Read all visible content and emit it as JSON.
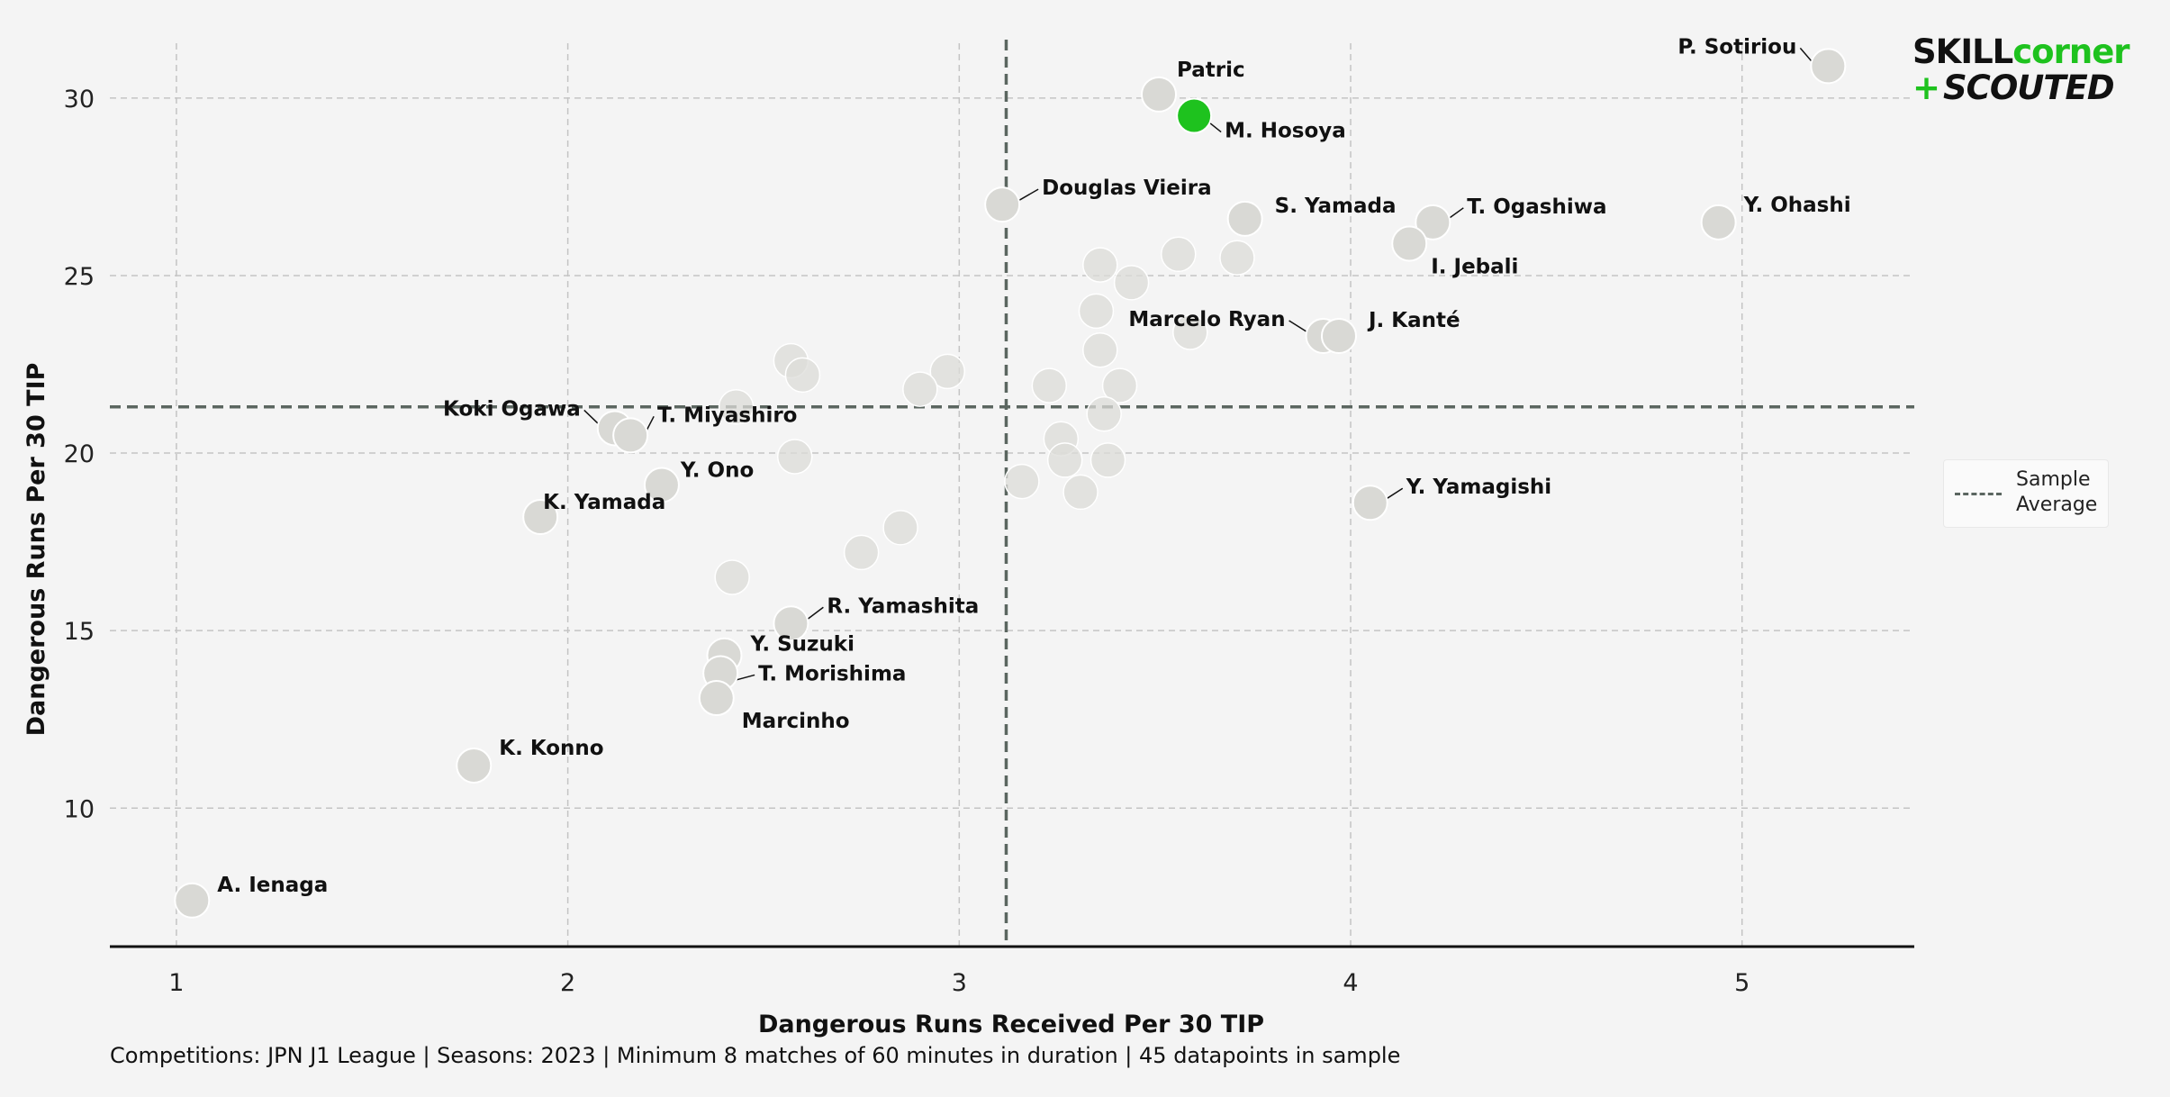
{
  "chart_data": {
    "type": "scatter",
    "xlabel": "Dangerous Runs Received Per 30 TIP",
    "ylabel": "Dangerous Runs Per 30 TIP",
    "xlim": [
      0.83,
      5.44
    ],
    "ylim": [
      6.1,
      32.0
    ],
    "x_ticks": [
      "1",
      "2",
      "3",
      "4",
      "5"
    ],
    "y_ticks": [
      "10",
      "15",
      "20",
      "25",
      "30"
    ],
    "grid": true,
    "average": {
      "x": 3.12,
      "y": 21.3
    },
    "legend": {
      "label": "Sample\nAverage",
      "placement": "right"
    },
    "highlight_color": "#1ec21e",
    "point_color": "#d9d9d5",
    "labeled_points": [
      {
        "label": "P. Sotiriou",
        "x": 5.22,
        "y": 30.9
      },
      {
        "label": "Patric",
        "x": 3.51,
        "y": 30.1
      },
      {
        "label": "M. Hosoya",
        "x": 3.6,
        "y": 29.5,
        "highlight": true
      },
      {
        "label": "Douglas Vieira",
        "x": 3.11,
        "y": 27.0
      },
      {
        "label": "S. Yamada",
        "x": 3.73,
        "y": 26.6
      },
      {
        "label": "T. Ogashiwa",
        "x": 4.21,
        "y": 26.5
      },
      {
        "label": "Y. Ohashi",
        "x": 4.94,
        "y": 26.5
      },
      {
        "label": "I. Jebali",
        "x": 4.15,
        "y": 25.9
      },
      {
        "label": "Marcelo Ryan",
        "x": 3.93,
        "y": 23.3
      },
      {
        "label": "J. Kanté",
        "x": 3.97,
        "y": 23.3
      },
      {
        "label": "Koki Ogawa",
        "x": 2.12,
        "y": 20.7
      },
      {
        "label": "T. Miyashiro",
        "x": 2.16,
        "y": 20.5
      },
      {
        "label": "Y. Ono",
        "x": 2.24,
        "y": 19.1
      },
      {
        "label": "Y. Yamagishi",
        "x": 4.05,
        "y": 18.6
      },
      {
        "label": "K. Yamada",
        "x": 1.93,
        "y": 18.2
      },
      {
        "label": "R. Yamashita",
        "x": 2.57,
        "y": 15.2
      },
      {
        "label": "Y. Suzuki",
        "x": 2.4,
        "y": 14.3
      },
      {
        "label": "T. Morishima",
        "x": 2.39,
        "y": 13.8
      },
      {
        "label": "Marcinho",
        "x": 2.38,
        "y": 13.1
      },
      {
        "label": "K. Konno",
        "x": 1.76,
        "y": 11.2
      },
      {
        "label": "A. Ienaga",
        "x": 1.04,
        "y": 7.4
      }
    ],
    "other_points": [
      [
        2.57,
        22.6
      ],
      [
        2.6,
        22.2
      ],
      [
        2.97,
        22.3
      ],
      [
        2.9,
        21.8
      ],
      [
        2.58,
        19.9
      ],
      [
        2.85,
        17.9
      ],
      [
        2.75,
        17.2
      ],
      [
        2.42,
        16.5
      ],
      [
        3.56,
        25.6
      ],
      [
        3.71,
        25.5
      ],
      [
        3.36,
        25.3
      ],
      [
        3.44,
        24.8
      ],
      [
        3.35,
        24.0
      ],
      [
        3.59,
        23.4
      ],
      [
        3.36,
        22.9
      ],
      [
        3.23,
        21.9
      ],
      [
        3.41,
        21.9
      ],
      [
        3.37,
        21.1
      ],
      [
        3.26,
        20.4
      ],
      [
        3.27,
        19.8
      ],
      [
        3.38,
        19.8
      ],
      [
        3.16,
        19.2
      ],
      [
        3.31,
        18.9
      ],
      [
        2.43,
        21.3
      ]
    ]
  },
  "footnote": "Competitions: JPN J1 League | Seasons: 2023 | Minimum 8 matches of 60 minutes in duration | 45 datapoints in sample",
  "logo": {
    "top_left": "SKILL",
    "top_right": "corner",
    "plus": "+",
    "bottom": "SCOUTED"
  }
}
